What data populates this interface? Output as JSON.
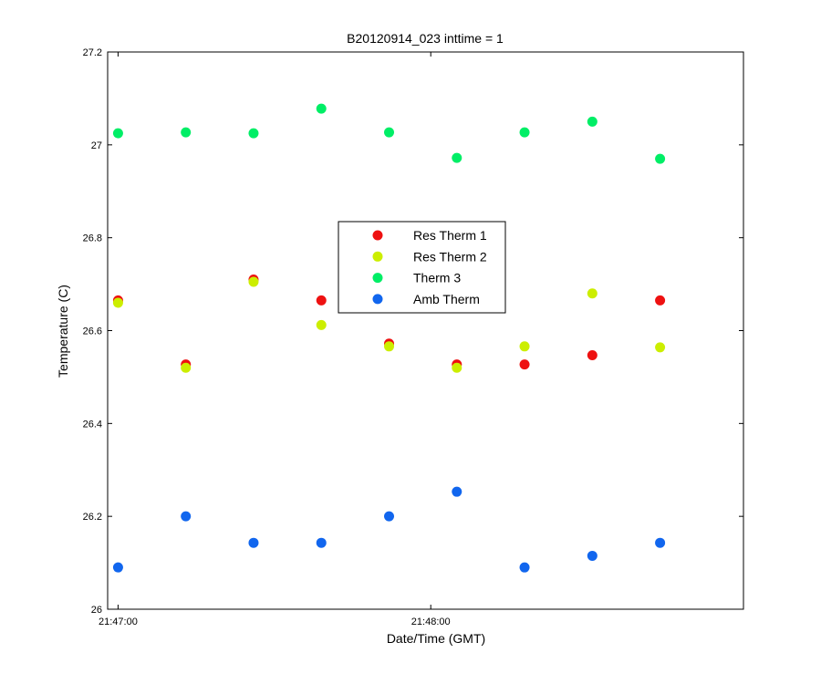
{
  "chart_data": {
    "type": "scatter",
    "title": "B20120914_023 inttime = 1",
    "xlabel": "Date/Time (GMT)",
    "ylabel": "Temperature (C)",
    "x_range": [
      "21:46:58",
      "21:49:00"
    ],
    "ylim": [
      26,
      27.2
    ],
    "y_ticks": [
      "26",
      "26.2",
      "26.4",
      "26.6",
      "26.8",
      "27",
      "27.2"
    ],
    "x_ticks": [
      "21:47:00",
      "21:48:00"
    ],
    "grid": false,
    "legend_position": "center",
    "x_times": [
      "21:47:00",
      "21:47:13",
      "21:47:26",
      "21:47:39",
      "21:47:52",
      "21:48:05",
      "21:48:18",
      "21:48:31",
      "21:48:44"
    ],
    "series": [
      {
        "name": "Res Therm 1",
        "color": "#ee1111",
        "values": [
          26.665,
          26.527,
          26.71,
          26.665,
          26.572,
          26.527,
          26.527,
          26.547,
          26.665
        ]
      },
      {
        "name": "Res Therm 2",
        "color": "#ccee00",
        "values": [
          26.66,
          26.52,
          26.705,
          26.612,
          26.566,
          26.52,
          26.566,
          26.68,
          26.564
        ]
      },
      {
        "name": "Therm 3",
        "color": "#00ee66",
        "values": [
          27.025,
          27.027,
          27.025,
          27.078,
          27.027,
          26.972,
          27.027,
          27.05,
          26.97
        ]
      },
      {
        "name": "Amb Therm",
        "color": "#1166ee",
        "values": [
          26.09,
          26.2,
          26.143,
          26.143,
          26.2,
          26.253,
          26.09,
          26.115,
          26.143
        ]
      }
    ]
  }
}
